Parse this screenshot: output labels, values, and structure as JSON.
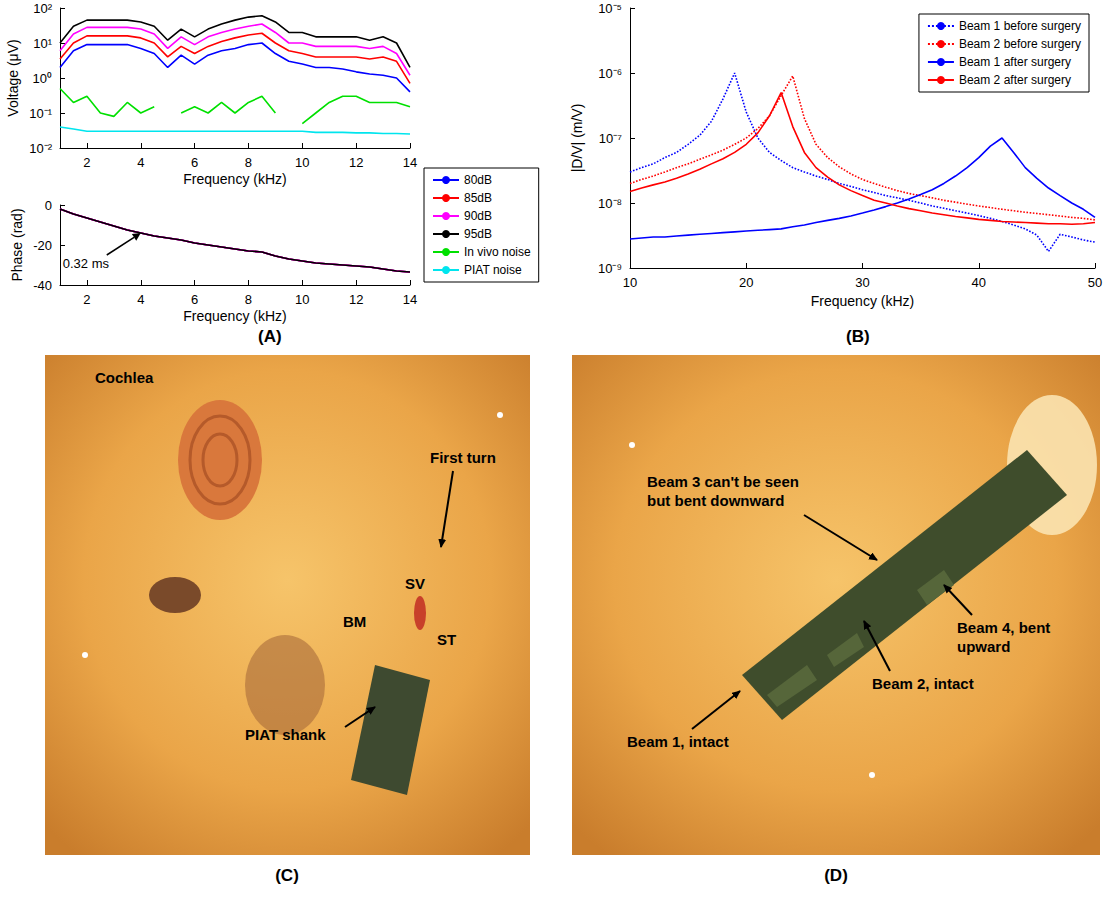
{
  "chart_data": [
    {
      "type": "line",
      "x_label": "Frequency (kHz)",
      "y_label": "Voltage (μV)",
      "log": "y",
      "grid": false,
      "legend": "right",
      "x": [
        1,
        1.5,
        2,
        2.5,
        3,
        3.5,
        4,
        4.5,
        5,
        5.5,
        6,
        6.5,
        7,
        7.5,
        8,
        8.5,
        9,
        9.5,
        10,
        10.5,
        11,
        11.5,
        12,
        12.5,
        13,
        13.5,
        14
      ],
      "xlim": [
        1,
        14
      ],
      "xticks": [
        2,
        4,
        6,
        8,
        10,
        12,
        14
      ],
      "ylim": [
        0.01,
        100
      ],
      "yticks": [
        {
          "value": 0.01,
          "label": "10⁻²"
        },
        {
          "value": 0.1,
          "label": "10⁻¹"
        },
        {
          "value": 1,
          "label": "10⁰"
        },
        {
          "value": 10,
          "label": "10¹"
        },
        {
          "value": 100,
          "label": "10²"
        }
      ],
      "series": [
        {
          "name": "80dB",
          "color": "#0000ff",
          "line_style": "solid",
          "values": [
            2,
            6,
            9,
            9,
            9,
            9,
            7,
            5,
            2,
            4.5,
            2.5,
            4.5,
            6,
            7,
            9,
            10,
            5,
            3,
            2.5,
            2,
            2,
            1.8,
            1.5,
            1.3,
            1.2,
            1,
            0.4
          ]
        },
        {
          "name": "85dB",
          "color": "#ff0000",
          "line_style": "solid",
          "values": [
            3.5,
            10,
            16,
            16,
            16,
            16,
            14,
            10,
            4,
            8,
            5,
            8,
            11,
            14,
            17,
            19,
            10,
            6,
            5,
            4,
            4,
            4,
            4,
            3.5,
            4,
            3,
            0.7
          ]
        },
        {
          "name": "90dB",
          "color": "#ff00ff",
          "line_style": "solid",
          "values": [
            6,
            18,
            28,
            28,
            28,
            28,
            25,
            18,
            7,
            15,
            9,
            15,
            20,
            25,
            30,
            35,
            20,
            10,
            10,
            8,
            8,
            8,
            8,
            7,
            8,
            5,
            1.2
          ]
        },
        {
          "name": "95dB",
          "color": "#000000",
          "line_style": "solid",
          "values": [
            10,
            30,
            45,
            45,
            45,
            45,
            40,
            30,
            12,
            25,
            15,
            25,
            35,
            45,
            55,
            60,
            40,
            20,
            20,
            15,
            15,
            15,
            15,
            12,
            15,
            10,
            2
          ]
        },
        {
          "name": "In vivo noise",
          "color": "#00e000",
          "line_style": "solid",
          "values": [
            0.5,
            0.2,
            0.3,
            0.1,
            0.08,
            0.2,
            0.1,
            0.15,
            null,
            0.1,
            0.15,
            0.1,
            0.2,
            0.1,
            0.2,
            0.3,
            0.1,
            null,
            0.05,
            0.1,
            0.2,
            0.3,
            0.3,
            0.2,
            0.2,
            0.2,
            0.15
          ]
        },
        {
          "name": "PIAT noise",
          "color": "#00e5ee",
          "line_style": "solid",
          "values": [
            0.04,
            0.035,
            0.03,
            0.03,
            0.03,
            0.03,
            0.03,
            0.03,
            0.03,
            0.03,
            0.03,
            0.03,
            0.03,
            0.03,
            0.03,
            0.03,
            0.03,
            0.03,
            0.03,
            0.028,
            0.028,
            0.028,
            0.027,
            0.027,
            0.026,
            0.026,
            0.025
          ]
        }
      ]
    },
    {
      "type": "line",
      "x_label": "Frequency (kHz)",
      "y_label": "Phase (rad)",
      "grid": false,
      "x": [
        1,
        1.5,
        2,
        2.5,
        3,
        3.5,
        4,
        4.5,
        5,
        5.5,
        6,
        6.5,
        7,
        7.5,
        8,
        8.5,
        9,
        9.5,
        10,
        10.5,
        11,
        11.5,
        12,
        12.5,
        13,
        13.5,
        14
      ],
      "xlim": [
        1,
        14
      ],
      "xticks": [
        2,
        4,
        6,
        8,
        10,
        12,
        14
      ],
      "ylim": [
        -40,
        0
      ],
      "yticks": [
        -40,
        -20,
        0
      ],
      "annotations": [
        {
          "text": "0.32 ms",
          "x": 4,
          "y": -14
        }
      ],
      "series": [
        {
          "name": "80dB",
          "color": "#0000ff",
          "line_style": "solid",
          "values": [
            -2,
            -4.5,
            -6.5,
            -8.5,
            -10.5,
            -12.5,
            -14,
            -15.5,
            -16.5,
            -17.5,
            -19,
            -20,
            -21,
            -22,
            -23,
            -23.5,
            -25.5,
            -27,
            -28,
            -29,
            -29.5,
            -30,
            -30.5,
            -31,
            -32,
            -33,
            -33.5
          ]
        },
        {
          "name": "85dB",
          "color": "#ff0000",
          "line_style": "solid",
          "values": [
            -2,
            -4.5,
            -6.5,
            -8.5,
            -10.5,
            -12.5,
            -14,
            -15.5,
            -16.5,
            -17.5,
            -19,
            -20,
            -21,
            -22,
            -23,
            -23.5,
            -25.5,
            -27,
            -28,
            -29,
            -29.5,
            -30,
            -30.5,
            -31,
            -32,
            -33,
            -33.5
          ]
        },
        {
          "name": "90dB",
          "color": "#ff00ff",
          "line_style": "solid",
          "values": [
            -2,
            -4.5,
            -6.5,
            -8.5,
            -10.5,
            -12.5,
            -14,
            -15.5,
            -16.5,
            -17.5,
            -19,
            -20,
            -21,
            -22,
            -23,
            -23.5,
            -25.5,
            -27,
            -28,
            -29,
            -29.5,
            -30,
            -30.5,
            -31,
            -32,
            -33,
            -33.5
          ]
        },
        {
          "name": "95dB",
          "color": "#000000",
          "line_style": "solid",
          "values": [
            -2,
            -4.5,
            -6.5,
            -8.5,
            -10.5,
            -12.5,
            -14,
            -15.5,
            -16.5,
            -17.5,
            -19,
            -20,
            -21,
            -22,
            -23,
            -23.5,
            -25.5,
            -27,
            -28,
            -29,
            -29.5,
            -30,
            -30.5,
            -31,
            -32,
            -33,
            -33.5
          ]
        }
      ]
    },
    {
      "type": "line",
      "x_label": "Frequency (kHz)",
      "y_label": "|D/V| (m/V)",
      "log": "y",
      "grid": false,
      "legend": "top-right",
      "x": [
        10,
        11,
        12,
        13,
        14,
        15,
        16,
        17,
        18,
        19,
        20,
        21,
        22,
        23,
        24,
        25,
        26,
        27,
        28,
        29,
        30,
        31,
        32,
        33,
        34,
        35,
        36,
        37,
        38,
        39,
        40,
        41,
        42,
        43,
        44,
        45,
        46,
        47,
        48,
        49,
        50
      ],
      "xlim": [
        10,
        50
      ],
      "xticks": [
        10,
        20,
        30,
        40,
        50
      ],
      "ylim": [
        1e-09,
        1e-05
      ],
      "yticks": [
        {
          "value": 1e-09,
          "label": "10⁻⁹"
        },
        {
          "value": 1e-08,
          "label": "10⁻⁸"
        },
        {
          "value": 1e-07,
          "label": "10⁻⁷"
        },
        {
          "value": 1e-06,
          "label": "10⁻⁶"
        },
        {
          "value": 1e-05,
          "label": "10⁻⁵"
        }
      ],
      "series": [
        {
          "name": "Beam 1 before surgery",
          "color": "#0000ff",
          "line_style": "dotted",
          "values": [
            3e-08,
            3.5e-08,
            4e-08,
            5e-08,
            6e-08,
            8e-08,
            1.1e-07,
            1.8e-07,
            4e-07,
            1e-06,
            2.5e-07,
            1e-07,
            6e-08,
            4.5e-08,
            3.5e-08,
            3e-08,
            2.6e-08,
            2.3e-08,
            2e-08,
            1.8e-08,
            1.6e-08,
            1.45e-08,
            1.3e-08,
            1.2e-08,
            1.1e-08,
            1e-08,
            9e-09,
            8.3e-09,
            7.6e-09,
            7e-09,
            6.4e-09,
            5.8e-09,
            5.2e-09,
            4.6e-09,
            4e-09,
            3.2e-09,
            1.8e-09,
            3.3e-09,
            3e-09,
            2.7e-09,
            2.5e-09
          ]
        },
        {
          "name": "Beam 2 before surgery",
          "color": "#ff0000",
          "line_style": "dotted",
          "values": [
            2e-08,
            2.3e-08,
            2.6e-08,
            3e-08,
            3.5e-08,
            4e-08,
            4.7e-08,
            5.5e-08,
            6.5e-08,
            8e-08,
            1e-07,
            1.4e-07,
            2.2e-07,
            4.5e-07,
            9e-07,
            2e-07,
            8e-08,
            5e-08,
            3.6e-08,
            2.8e-08,
            2.3e-08,
            2e-08,
            1.75e-08,
            1.55e-08,
            1.4e-08,
            1.3e-08,
            1.2e-08,
            1.1e-08,
            1.03e-08,
            9.6e-09,
            9e-09,
            8.5e-09,
            8e-09,
            7.6e-09,
            7.2e-09,
            6.9e-09,
            6.6e-09,
            6.3e-09,
            6e-09,
            5.8e-09,
            5.5e-09
          ]
        },
        {
          "name": "Beam 1 after surgery",
          "color": "#0000ff",
          "line_style": "solid",
          "values": [
            2.8e-09,
            2.9e-09,
            3e-09,
            3e-09,
            3.1e-09,
            3.2e-09,
            3.3e-09,
            3.4e-09,
            3.5e-09,
            3.6e-09,
            3.7e-09,
            3.8e-09,
            3.9e-09,
            4e-09,
            4.3e-09,
            4.6e-09,
            5e-09,
            5.4e-09,
            5.8e-09,
            6.3e-09,
            7e-09,
            7.8e-09,
            8.8e-09,
            1e-08,
            1.15e-08,
            1.35e-08,
            1.6e-08,
            2e-08,
            2.6e-08,
            3.5e-08,
            5e-08,
            7.5e-08,
            1e-07,
            6e-08,
            3.5e-08,
            2.4e-08,
            1.7e-08,
            1.3e-08,
            1e-08,
            8e-09,
            6e-09
          ]
        },
        {
          "name": "Beam 2 after surgery",
          "color": "#ff0000",
          "line_style": "solid",
          "values": [
            1.5e-08,
            1.7e-08,
            1.9e-08,
            2.1e-08,
            2.4e-08,
            2.8e-08,
            3.3e-08,
            4e-08,
            4.8e-08,
            6e-08,
            8e-08,
            1.2e-07,
            2.2e-07,
            5e-07,
            1.5e-07,
            6e-08,
            3.5e-08,
            2.5e-08,
            1.9e-08,
            1.55e-08,
            1.3e-08,
            1.1e-08,
            1e-08,
            9e-09,
            8.2e-09,
            7.6e-09,
            7e-09,
            6.6e-09,
            6.2e-09,
            5.9e-09,
            5.6e-09,
            5.4e-09,
            5.2e-09,
            5.1e-09,
            5e-09,
            4.9e-09,
            4.8e-09,
            4.8e-09,
            4.7e-09,
            4.8e-09,
            5e-09
          ]
        }
      ]
    }
  ],
  "panel_labels": [
    "(A)",
    "(B)",
    "(C)",
    "(D)"
  ],
  "photos": [
    {
      "texts": [
        {
          "lines": [
            "Cochlea"
          ]
        },
        {
          "lines": [
            "First turn"
          ]
        },
        {
          "lines": [
            "SV"
          ]
        },
        {
          "lines": [
            "BM"
          ]
        },
        {
          "lines": [
            "ST"
          ]
        },
        {
          "lines": [
            "PIAT shank"
          ]
        }
      ]
    },
    {
      "texts": [
        {
          "lines": [
            "Beam 3 can't be seen",
            "but bent downward"
          ]
        },
        {
          "lines": [
            "Beam 4, bent",
            "upward"
          ]
        },
        {
          "lines": [
            "Beam 1, intact"
          ]
        },
        {
          "lines": [
            "Beam 2, intact"
          ]
        }
      ]
    }
  ]
}
